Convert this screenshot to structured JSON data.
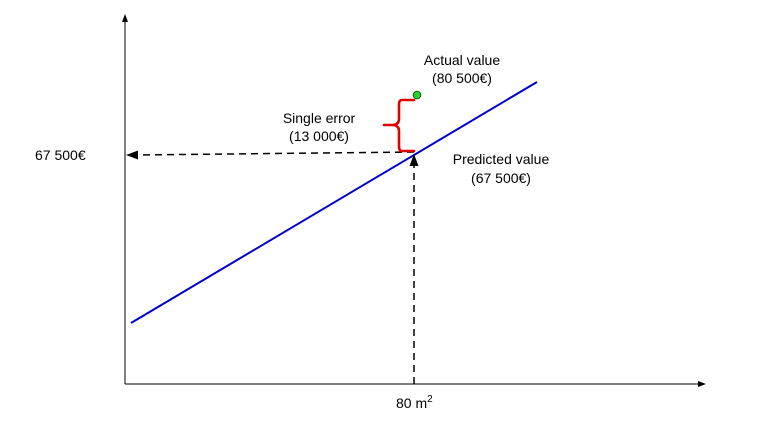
{
  "diagram": {
    "y_value_label": "67 500€",
    "x_value_label": {
      "base": "80 m",
      "superscript": "2"
    },
    "actual": {
      "title": "Actual value",
      "value": "(80 500€)"
    },
    "predicted": {
      "title": "Predicted value",
      "value": "(67 500€)"
    },
    "error": {
      "title": "Single error",
      "value": "(13 000€)"
    }
  },
  "colors": {
    "axes": "#000000",
    "regression_line": "#0000cc",
    "error_brace": "#e00000",
    "actual_point_fill": "#33cc33",
    "actual_point_stroke": "#006600",
    "guide_lines": "#000000"
  }
}
